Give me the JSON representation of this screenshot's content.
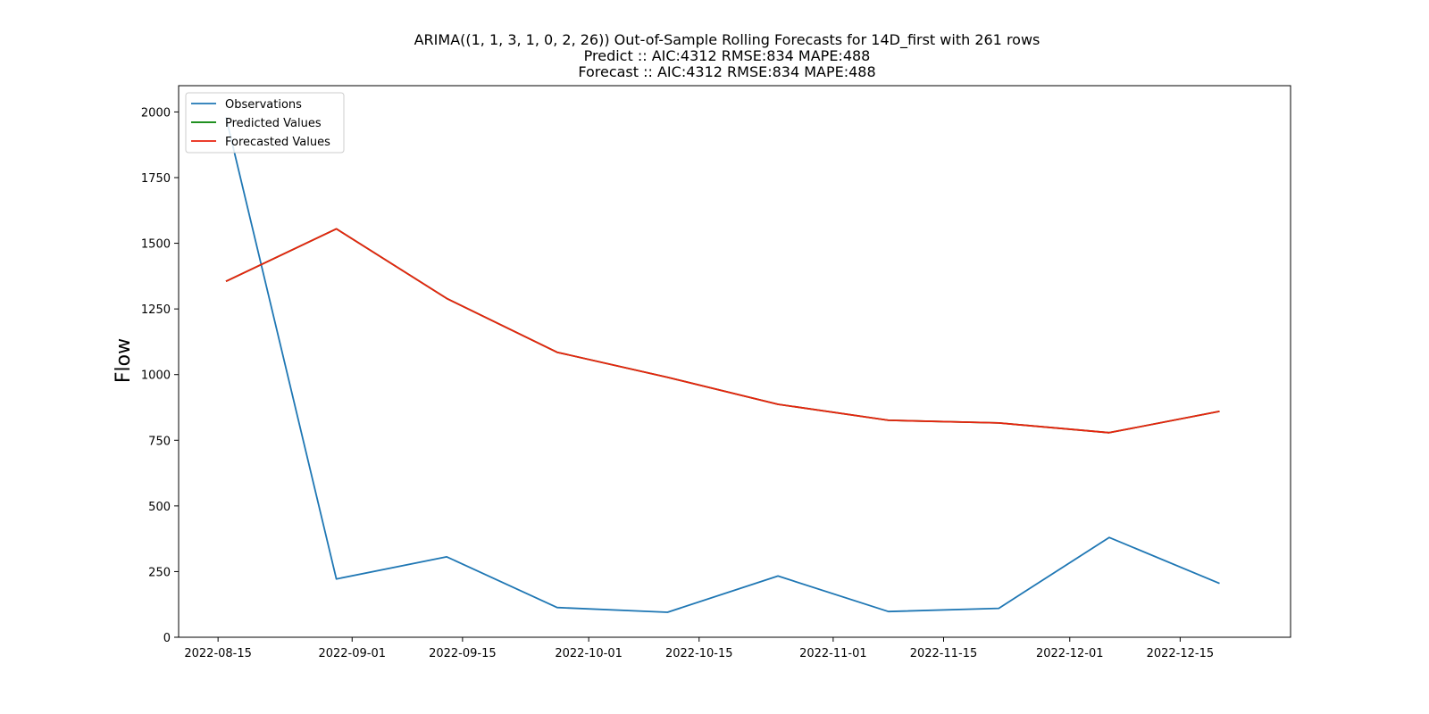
{
  "chart_data": {
    "type": "line",
    "title_lines": [
      "ARIMA((1, 1, 3, 1, 0, 2, 26)) Out-of-Sample Rolling Forecasts for 14D_first with 261 rows",
      "Predict :: AIC:4312 RMSE:834 MAPE:488",
      "Forecast :: AIC:4312 RMSE:834 MAPE:488"
    ],
    "xlabel": "",
    "ylabel": "Flow",
    "x": [
      "2022-08-16",
      "2022-08-30",
      "2022-09-13",
      "2022-09-27",
      "2022-10-11",
      "2022-10-25",
      "2022-11-08",
      "2022-11-22",
      "2022-12-06",
      "2022-12-20"
    ],
    "xlim": [
      "2022-08-10",
      "2022-12-29"
    ],
    "ylim": [
      0,
      2100
    ],
    "xticks": [
      "2022-08-15",
      "2022-09-01",
      "2022-09-15",
      "2022-10-01",
      "2022-10-15",
      "2022-11-01",
      "2022-11-15",
      "2022-12-01",
      "2022-12-15"
    ],
    "yticks": [
      0,
      250,
      500,
      750,
      1000,
      1250,
      1500,
      1750,
      2000
    ],
    "grid": false,
    "legend_position": "top-left",
    "series": [
      {
        "name": "Observations",
        "color": "#1f77b4",
        "values": [
          1980,
          222,
          306,
          113,
          95,
          233,
          98,
          110,
          380,
          205
        ]
      },
      {
        "name": "Predicted Values",
        "color": "#008000",
        "values": [
          1355,
          1555,
          1290,
          1085,
          990,
          887,
          826,
          816,
          779,
          860
        ]
      },
      {
        "name": "Forecasted Values",
        "color": "#e8220f",
        "values": [
          1355,
          1555,
          1290,
          1085,
          990,
          887,
          826,
          816,
          779,
          860
        ]
      }
    ]
  }
}
